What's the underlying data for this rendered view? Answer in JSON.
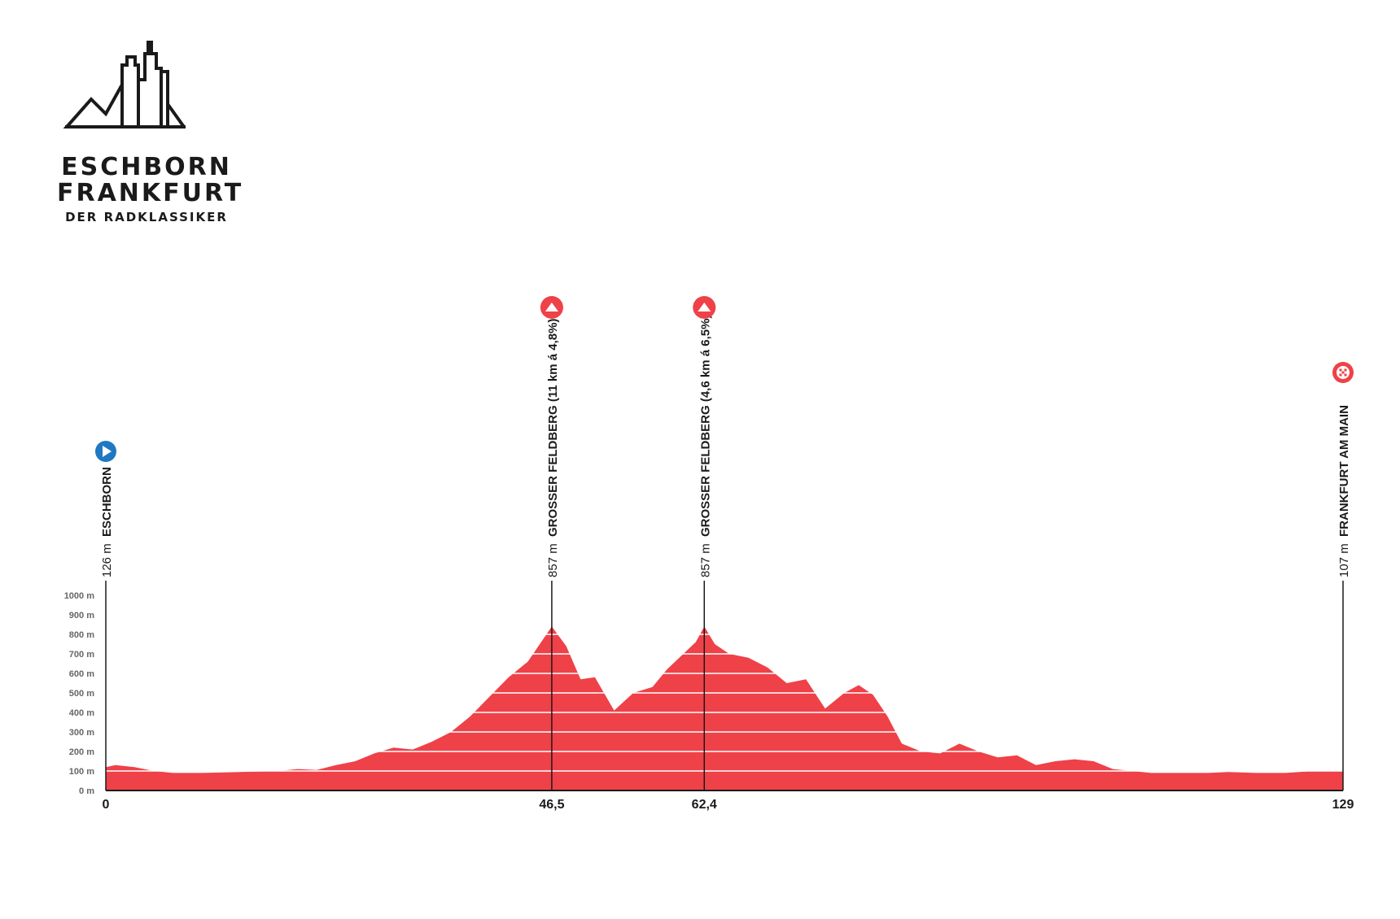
{
  "logo": {
    "line1": "ESCHBORN",
    "line2": "FRANKFURT",
    "line3": "DER RADKLASSIKER",
    "icon": "skyline-mountains-icon"
  },
  "colors": {
    "profile_fill": "#ef4148",
    "start_marker": "#1f78c1",
    "climb_marker": "#ef4148",
    "finish_marker": "#ef4148",
    "text": "#1a1a1a",
    "axis_text": "#666666"
  },
  "chart_data": {
    "type": "area",
    "title": "",
    "xlabel": "",
    "ylabel": "",
    "xlim": [
      0,
      129
    ],
    "ylim": [
      0,
      1000
    ],
    "grid": true,
    "y_ticks": [
      {
        "v": 0,
        "label": "0 m"
      },
      {
        "v": 100,
        "label": "100 m"
      },
      {
        "v": 200,
        "label": "200 m"
      },
      {
        "v": 300,
        "label": "300 m"
      },
      {
        "v": 400,
        "label": "400 m"
      },
      {
        "v": 500,
        "label": "500 m"
      },
      {
        "v": 600,
        "label": "600 m"
      },
      {
        "v": 700,
        "label": "700 m"
      },
      {
        "v": 800,
        "label": "800 m"
      },
      {
        "v": 900,
        "label": "900 m"
      },
      {
        "v": 1000,
        "label": "1000 m"
      }
    ],
    "x_ticks": [
      {
        "v": 0,
        "label": "0"
      },
      {
        "v": 46.5,
        "label": "46,5"
      },
      {
        "v": 62.4,
        "label": "62,4"
      },
      {
        "v": 129,
        "label": "129"
      }
    ],
    "points": [
      {
        "name": "ESCHBORN",
        "alt": "126 m",
        "km": 0,
        "kind": "start"
      },
      {
        "name": "GROSSER FELDBERG (11 km á 4,8%)",
        "alt": "857 m",
        "km": 46.5,
        "kind": "climb"
      },
      {
        "name": "GROSSER FELDBERG (4,6 km á 6,5%)",
        "alt": "857 m",
        "km": 62.4,
        "kind": "climb"
      },
      {
        "name": "FRANKFURT AM MAIN",
        "alt": "107 m",
        "km": 129,
        "kind": "finish"
      }
    ],
    "x": [
      0,
      1,
      3,
      5,
      7,
      10,
      14,
      18,
      20,
      22,
      24,
      26,
      28,
      30,
      32,
      34,
      36,
      38,
      40,
      42,
      44,
      46.5,
      48,
      49.5,
      51,
      53,
      55,
      57,
      58.5,
      60,
      61.5,
      62.4,
      63.5,
      65,
      67,
      69,
      71,
      73,
      75,
      77,
      78.5,
      80,
      81.5,
      83,
      85,
      87,
      89,
      91,
      93,
      95,
      97,
      99,
      101,
      103,
      105,
      107,
      109,
      111,
      113,
      115,
      117,
      120,
      123,
      126,
      129
    ],
    "y": [
      120,
      130,
      120,
      100,
      90,
      90,
      95,
      100,
      110,
      105,
      130,
      150,
      190,
      220,
      210,
      250,
      300,
      380,
      480,
      580,
      660,
      840,
      740,
      570,
      580,
      410,
      500,
      530,
      620,
      690,
      760,
      840,
      750,
      700,
      680,
      630,
      550,
      570,
      420,
      500,
      540,
      490,
      380,
      240,
      200,
      190,
      240,
      200,
      170,
      180,
      130,
      150,
      160,
      150,
      110,
      100,
      90,
      90,
      90,
      90,
      95,
      90,
      90,
      100,
      100
    ]
  }
}
